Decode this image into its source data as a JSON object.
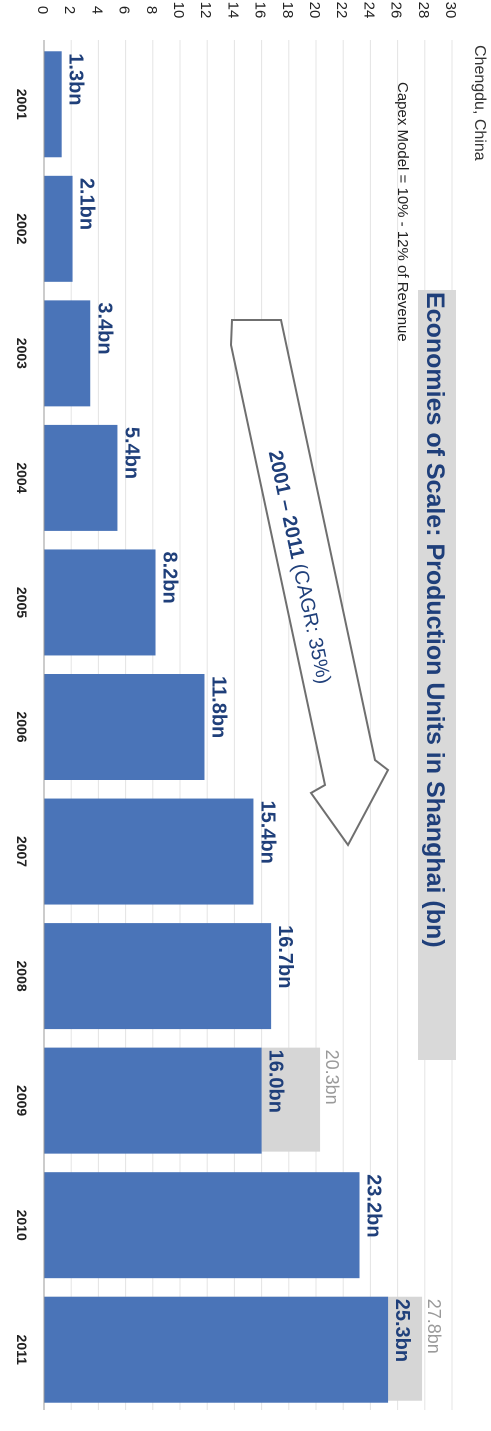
{
  "subtitle_top": "Chengdu, China",
  "chart_data": {
    "type": "bar",
    "orientation": "vertical",
    "title": "Economies of Scale: Production Units in Shanghai (bn)",
    "subtitle": "Capex Model = 10% - 12% of Revenue",
    "categories": [
      "2001",
      "2002",
      "2003",
      "2004",
      "2005",
      "2006",
      "2007",
      "2008",
      "2009",
      "2010",
      "2011"
    ],
    "series": [
      {
        "values": [
          1.3,
          2.1,
          3.4,
          5.4,
          8.2,
          11.8,
          15.4,
          16.7,
          16.0,
          23.2,
          25.3
        ],
        "color": "#4a74b8"
      },
      {
        "type": "ghost",
        "values": [
          null,
          null,
          null,
          null,
          null,
          null,
          null,
          null,
          20.3,
          null,
          27.8
        ],
        "color": "#d6d6d6"
      }
    ],
    "data_labels": [
      "1.3bn",
      "2.1bn",
      "3.4bn",
      "5.4bn",
      "8.2bn",
      "11.8bn",
      "15.4bn",
      "16.7bn",
      "16.0bn",
      "23.2bn",
      "25.3bn"
    ],
    "ghost_labels": [
      "",
      "",
      "",
      "",
      "",
      "",
      "",
      "",
      "20.3bn",
      "",
      "27.8bn"
    ],
    "ylim": [
      0,
      30
    ],
    "yticks": [
      "0",
      "2",
      "4",
      "6",
      "8",
      "10",
      "12",
      "14",
      "16",
      "18",
      "20",
      "22",
      "24",
      "26",
      "28",
      "30"
    ],
    "grid": true,
    "annotation": {
      "text_bold": "2001 – 2011",
      "text_regular": " (CAGR: 35%)"
    }
  },
  "colors": {
    "bar": "#4a74b8",
    "ghost": "#d6d6d6",
    "title": "#1f3f7a",
    "label": "#1f3f7a",
    "ghost_label": "#9a9a9a",
    "grid": "#e4e4e4"
  }
}
